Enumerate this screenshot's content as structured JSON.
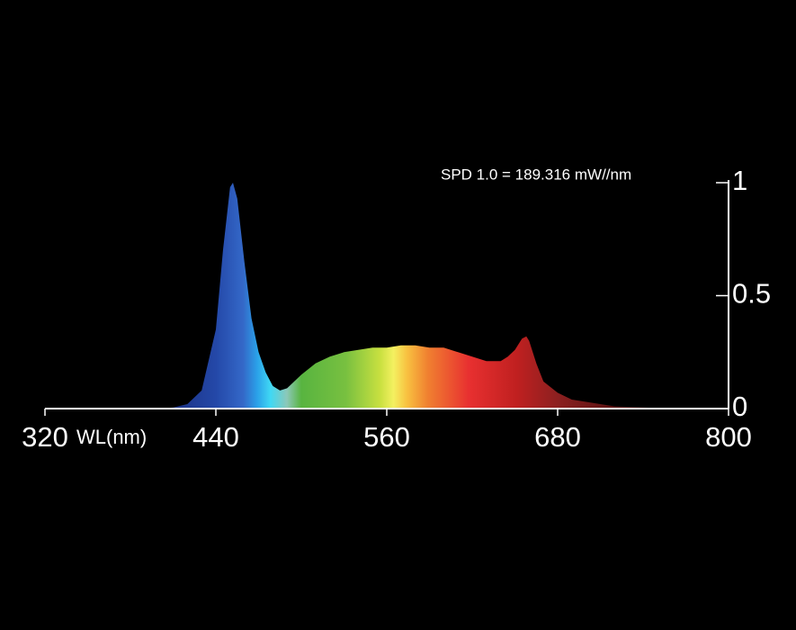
{
  "chart_data": {
    "type": "area",
    "annotation": "SPD  1.0 = 189.316 mW//nm",
    "x_label": "WL(nm)",
    "x": [
      320,
      400,
      410,
      420,
      430,
      440,
      445,
      450,
      452,
      455,
      460,
      465,
      470,
      475,
      480,
      485,
      490,
      500,
      510,
      520,
      530,
      540,
      550,
      560,
      570,
      580,
      590,
      600,
      610,
      620,
      630,
      640,
      645,
      650,
      655,
      658,
      660,
      665,
      670,
      680,
      690,
      700,
      720,
      740,
      760,
      800
    ],
    "values": [
      0,
      0,
      0.005,
      0.02,
      0.08,
      0.35,
      0.7,
      0.98,
      1.0,
      0.93,
      0.65,
      0.4,
      0.25,
      0.16,
      0.1,
      0.08,
      0.09,
      0.15,
      0.2,
      0.23,
      0.25,
      0.26,
      0.27,
      0.27,
      0.28,
      0.28,
      0.27,
      0.27,
      0.25,
      0.23,
      0.21,
      0.21,
      0.23,
      0.26,
      0.31,
      0.32,
      0.3,
      0.2,
      0.12,
      0.07,
      0.04,
      0.03,
      0.01,
      0.005,
      0,
      0
    ],
    "xlim": [
      320,
      800
    ],
    "xticks": [
      320,
      440,
      560,
      680,
      800
    ],
    "ylim": [
      0,
      1
    ],
    "yticks": [
      0,
      0.5,
      1
    ]
  }
}
